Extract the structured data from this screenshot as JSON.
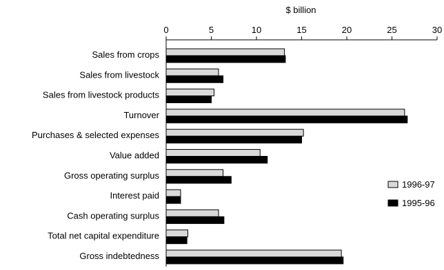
{
  "chart_data": {
    "type": "bar",
    "orientation": "horizontal",
    "unit_label": "$ billion",
    "xlim": [
      0,
      30
    ],
    "x_ticks": [
      0,
      5,
      10,
      15,
      20,
      25,
      30
    ],
    "grid": false,
    "legend_position": "right",
    "categories": [
      "Sales from crops",
      "Sales from livestock",
      "Sales from livestock products",
      "Turnover",
      "Purchases & selected expenses",
      "Value added",
      "Gross operating surplus",
      "Interest paid",
      "Cash operating surplus",
      "Total net capital expenditure",
      "Gross indebtedness"
    ],
    "series": [
      {
        "name": "1996-97",
        "color": "#d9d9d9",
        "values": [
          13.1,
          5.8,
          5.3,
          26.4,
          15.2,
          10.4,
          6.3,
          1.6,
          5.8,
          2.4,
          19.4
        ]
      },
      {
        "name": "1995-96",
        "color": "#000000",
        "values": [
          13.2,
          6.3,
          5.0,
          26.7,
          15.0,
          11.2,
          7.2,
          1.6,
          6.4,
          2.3,
          19.6
        ]
      }
    ]
  }
}
